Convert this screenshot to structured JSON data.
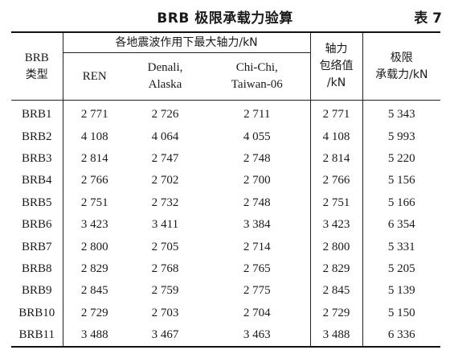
{
  "caption": {
    "title": "BRB 极限承载力验算",
    "number": "表 7"
  },
  "headers": {
    "type": [
      "BRB",
      "类型"
    ],
    "group": "各地震波作用下最大轴力/kN",
    "ren": "REN",
    "denali": [
      "Denali,",
      "Alaska"
    ],
    "chichi": [
      "Chi-Chi,",
      "Taiwan-06"
    ],
    "envelope": [
      "轴力",
      "包络值",
      "/kN"
    ],
    "ultimate": [
      "极限",
      "承载力/kN"
    ]
  },
  "rows": [
    [
      "BRB1",
      "2 771",
      "2 726",
      "2 711",
      "2 771",
      "5 343"
    ],
    [
      "BRB2",
      "4 108",
      "4 064",
      "4 055",
      "4 108",
      "5 993"
    ],
    [
      "BRB3",
      "2 814",
      "2 747",
      "2 748",
      "2 814",
      "5 220"
    ],
    [
      "BRB4",
      "2 766",
      "2 702",
      "2 700",
      "2 766",
      "5 156"
    ],
    [
      "BRB5",
      "2 751",
      "2 732",
      "2 748",
      "2 751",
      "5 166"
    ],
    [
      "BRB6",
      "3 423",
      "3 411",
      "3 384",
      "3 423",
      "6 354"
    ],
    [
      "BRB7",
      "2 800",
      "2 705",
      "2 714",
      "2 800",
      "5 331"
    ],
    [
      "BRB8",
      "2 829",
      "2 768",
      "2 765",
      "2 829",
      "5 205"
    ],
    [
      "BRB9",
      "2 845",
      "2 759",
      "2 775",
      "2 845",
      "5 139"
    ],
    [
      "BRB10",
      "2 729",
      "2 703",
      "2 704",
      "2 729",
      "5 150"
    ],
    [
      "BRB11",
      "3 488",
      "3 467",
      "3 463",
      "3 488",
      "6 336"
    ]
  ]
}
